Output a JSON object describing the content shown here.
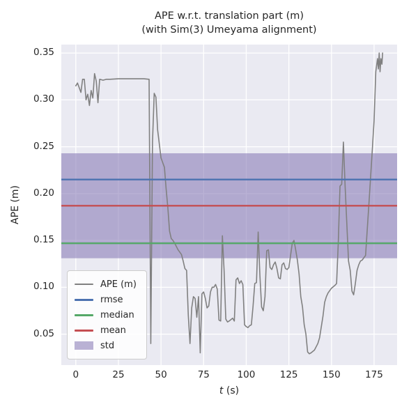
{
  "title": {
    "line1": "APE w.r.t. translation part (m)",
    "line2": "(with Sim(3) Umeyama alignment)"
  },
  "axes": {
    "xlabel_var": "t",
    "xlabel_unit": " (s)",
    "ylabel": "APE (m)"
  },
  "legend": {
    "items": [
      {
        "label": "APE (m)",
        "type": "line",
        "color": "#808080",
        "lw": 2
      },
      {
        "label": "rmse",
        "type": "line",
        "color": "#4C72B0",
        "lw": 3
      },
      {
        "label": "median",
        "type": "line",
        "color": "#55A868",
        "lw": 3
      },
      {
        "label": "mean",
        "type": "line",
        "color": "#C44E52",
        "lw": 3
      },
      {
        "label": "std",
        "type": "patch",
        "color": "#8172B2",
        "lw": 12
      }
    ]
  },
  "chart_data": {
    "type": "line",
    "title": "APE w.r.t. translation part (m) (with Sim(3) Umeyama alignment)",
    "xlabel": "t (s)",
    "ylabel": "APE (m)",
    "xlim": [
      -8.5,
      188.5
    ],
    "ylim": [
      0.017,
      0.359
    ],
    "xticks": [
      0,
      25,
      50,
      75,
      100,
      125,
      150,
      175
    ],
    "yticks": [
      0.05,
      0.1,
      0.15,
      0.2,
      0.25,
      0.3,
      0.35
    ],
    "grid": true,
    "legend_position": "lower left",
    "stats": {
      "rmse": 0.215,
      "median": 0.147,
      "mean": 0.187,
      "std": 0.056
    },
    "colors": {
      "ape": "#808080",
      "rmse": "#4C72B0",
      "median": "#55A868",
      "mean": "#C44E52",
      "std": "#8172B2",
      "plot_bg": "#EAEAF2",
      "grid": "#FFFFFF"
    },
    "series": [
      {
        "name": "APE (m)",
        "points": [
          [
            0,
            0.315
          ],
          [
            1,
            0.318
          ],
          [
            2,
            0.313
          ],
          [
            3,
            0.308
          ],
          [
            4,
            0.322
          ],
          [
            5,
            0.322
          ],
          [
            6,
            0.3
          ],
          [
            7,
            0.306
          ],
          [
            8,
            0.294
          ],
          [
            9,
            0.31
          ],
          [
            10,
            0.302
          ],
          [
            11,
            0.328
          ],
          [
            12,
            0.32
          ],
          [
            13,
            0.297
          ],
          [
            14,
            0.322
          ],
          [
            16,
            0.321
          ],
          [
            18,
            0.322
          ],
          [
            20,
            0.322
          ],
          [
            25,
            0.3225
          ],
          [
            30,
            0.3225
          ],
          [
            35,
            0.3225
          ],
          [
            40,
            0.3225
          ],
          [
            43,
            0.322
          ],
          [
            44,
            0.04
          ],
          [
            45,
            0.255
          ],
          [
            46,
            0.307
          ],
          [
            47,
            0.303
          ],
          [
            48,
            0.268
          ],
          [
            50,
            0.238
          ],
          [
            52,
            0.228
          ],
          [
            53,
            0.205
          ],
          [
            54,
            0.185
          ],
          [
            55,
            0.16
          ],
          [
            56,
            0.152
          ],
          [
            57,
            0.15
          ],
          [
            58,
            0.147
          ],
          [
            60,
            0.14
          ],
          [
            62,
            0.135
          ],
          [
            63,
            0.128
          ],
          [
            64,
            0.12
          ],
          [
            65,
            0.118
          ],
          [
            66,
            0.07
          ],
          [
            67,
            0.04
          ],
          [
            68,
            0.078
          ],
          [
            69,
            0.09
          ],
          [
            70,
            0.088
          ],
          [
            71,
            0.068
          ],
          [
            72,
            0.09
          ],
          [
            73,
            0.03
          ],
          [
            74,
            0.093
          ],
          [
            75,
            0.095
          ],
          [
            76,
            0.088
          ],
          [
            77,
            0.078
          ],
          [
            78,
            0.08
          ],
          [
            79,
            0.095
          ],
          [
            80,
            0.1
          ],
          [
            81,
            0.1
          ],
          [
            82,
            0.103
          ],
          [
            83,
            0.098
          ],
          [
            84,
            0.065
          ],
          [
            85,
            0.064
          ],
          [
            86,
            0.155
          ],
          [
            87,
            0.118
          ],
          [
            88,
            0.066
          ],
          [
            89,
            0.063
          ],
          [
            90,
            0.064
          ],
          [
            92,
            0.067
          ],
          [
            93,
            0.064
          ],
          [
            94,
            0.108
          ],
          [
            95,
            0.11
          ],
          [
            96,
            0.104
          ],
          [
            97,
            0.107
          ],
          [
            98,
            0.103
          ],
          [
            99,
            0.06
          ],
          [
            100,
            0.058
          ],
          [
            101,
            0.057
          ],
          [
            102,
            0.059
          ],
          [
            103,
            0.06
          ],
          [
            104,
            0.08
          ],
          [
            105,
            0.104
          ],
          [
            106,
            0.105
          ],
          [
            107,
            0.159
          ],
          [
            108,
            0.113
          ],
          [
            109,
            0.079
          ],
          [
            110,
            0.075
          ],
          [
            111,
            0.09
          ],
          [
            112,
            0.139
          ],
          [
            113,
            0.14
          ],
          [
            114,
            0.121
          ],
          [
            115,
            0.119
          ],
          [
            116,
            0.124
          ],
          [
            117,
            0.127
          ],
          [
            118,
            0.12
          ],
          [
            119,
            0.11
          ],
          [
            120,
            0.109
          ],
          [
            121,
            0.124
          ],
          [
            122,
            0.126
          ],
          [
            123,
            0.12
          ],
          [
            124,
            0.119
          ],
          [
            125,
            0.121
          ],
          [
            126,
            0.134
          ],
          [
            127,
            0.147
          ],
          [
            128,
            0.15
          ],
          [
            129,
            0.14
          ],
          [
            130,
            0.129
          ],
          [
            131,
            0.114
          ],
          [
            132,
            0.09
          ],
          [
            133,
            0.079
          ],
          [
            134,
            0.06
          ],
          [
            135,
            0.05
          ],
          [
            136,
            0.031
          ],
          [
            137,
            0.029
          ],
          [
            138,
            0.03
          ],
          [
            140,
            0.033
          ],
          [
            142,
            0.04
          ],
          [
            143,
            0.046
          ],
          [
            145,
            0.069
          ],
          [
            146,
            0.084
          ],
          [
            147,
            0.09
          ],
          [
            148,
            0.094
          ],
          [
            150,
            0.099
          ],
          [
            152,
            0.102
          ],
          [
            153,
            0.104
          ],
          [
            154,
            0.148
          ],
          [
            155,
            0.208
          ],
          [
            156,
            0.21
          ],
          [
            157,
            0.255
          ],
          [
            158,
            0.208
          ],
          [
            159,
            0.168
          ],
          [
            160,
            0.128
          ],
          [
            161,
            0.118
          ],
          [
            162,
            0.096
          ],
          [
            163,
            0.092
          ],
          [
            164,
            0.104
          ],
          [
            165,
            0.118
          ],
          [
            166,
            0.124
          ],
          [
            167,
            0.128
          ],
          [
            168,
            0.129
          ],
          [
            170,
            0.134
          ],
          [
            172,
            0.19
          ],
          [
            174,
            0.248
          ],
          [
            175,
            0.278
          ],
          [
            176,
            0.33
          ],
          [
            177,
            0.344
          ],
          [
            177.5,
            0.333
          ],
          [
            178,
            0.35
          ],
          [
            178.5,
            0.33
          ],
          [
            179,
            0.344
          ],
          [
            179.6,
            0.338
          ],
          [
            180,
            0.35
          ]
        ]
      }
    ]
  }
}
